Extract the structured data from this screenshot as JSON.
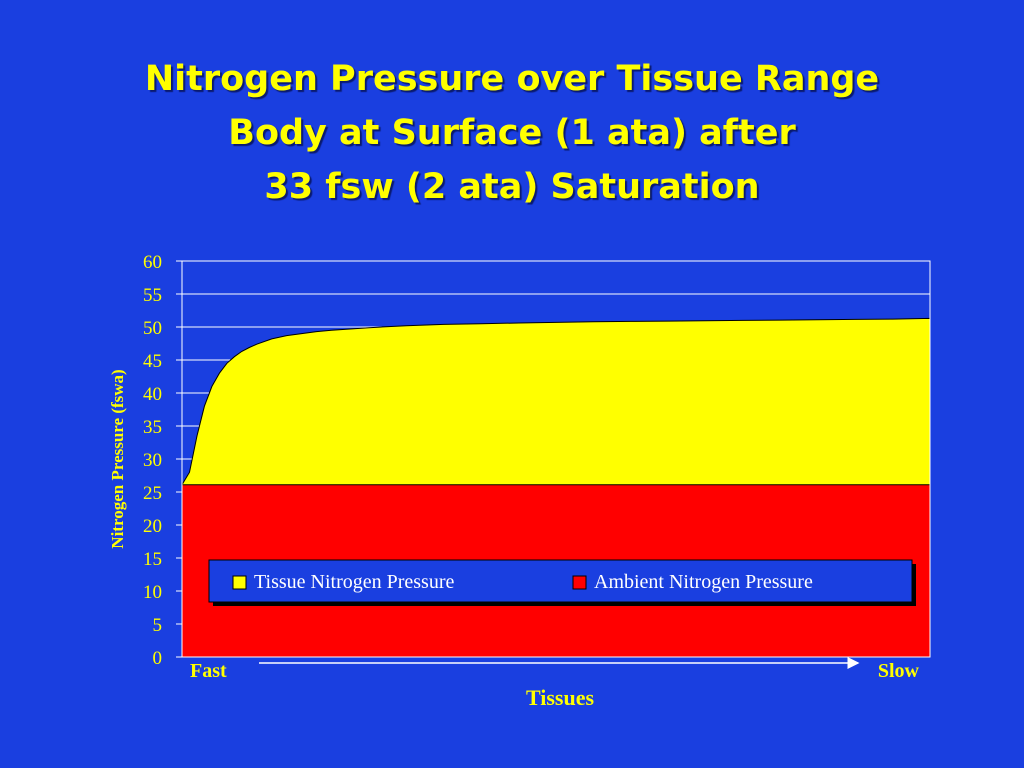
{
  "slide": {
    "background": "#1a3fe0",
    "title_lines": [
      "Nitrogen Pressure over Tissue Range",
      "Body at Surface (1 ata) after",
      "33 fsw (2 ata) Saturation"
    ]
  },
  "chart_data": {
    "type": "area",
    "title": "",
    "xlabel": "Tissues",
    "ylabel": "Nitrogen Pressure (fswa)",
    "x_start_label": "Fast",
    "x_end_label": "Slow",
    "ylim": [
      0,
      60
    ],
    "yticks": [
      0,
      5,
      10,
      15,
      20,
      25,
      30,
      35,
      40,
      45,
      50,
      55,
      60
    ],
    "grid": true,
    "legend_position": "bottom-center",
    "colors": {
      "tissue": "#ffff00",
      "ambient": "#ff0000",
      "axis_text": "#ffff00",
      "gridlines": "#ffffff"
    },
    "x": [
      0,
      0.01,
      0.02,
      0.03,
      0.04,
      0.05,
      0.06,
      0.07,
      0.08,
      0.09,
      0.1,
      0.12,
      0.14,
      0.16,
      0.18,
      0.2,
      0.25,
      0.3,
      0.35,
      0.4,
      0.45,
      0.5,
      0.55,
      0.6,
      0.65,
      0.7,
      0.75,
      0.8,
      0.85,
      0.9,
      0.95,
      1.0
    ],
    "series": [
      {
        "name": "Tissue Nitrogen Pressure",
        "color": "#ffff00",
        "values": [
          26.1,
          28.0,
          33.5,
          38.0,
          41.0,
          43.0,
          44.5,
          45.5,
          46.3,
          46.9,
          47.4,
          48.2,
          48.7,
          49.0,
          49.3,
          49.5,
          49.9,
          50.2,
          50.4,
          50.5,
          50.6,
          50.7,
          50.8,
          50.85,
          50.9,
          50.95,
          51.0,
          51.05,
          51.1,
          51.15,
          51.2,
          51.3
        ]
      },
      {
        "name": "Ambient Nitrogen Pressure",
        "color": "#ff0000",
        "values": [
          26.1,
          26.1,
          26.1,
          26.1,
          26.1,
          26.1,
          26.1,
          26.1,
          26.1,
          26.1,
          26.1,
          26.1,
          26.1,
          26.1,
          26.1,
          26.1,
          26.1,
          26.1,
          26.1,
          26.1,
          26.1,
          26.1,
          26.1,
          26.1,
          26.1,
          26.1,
          26.1,
          26.1,
          26.1,
          26.1,
          26.1,
          26.1
        ]
      }
    ]
  }
}
